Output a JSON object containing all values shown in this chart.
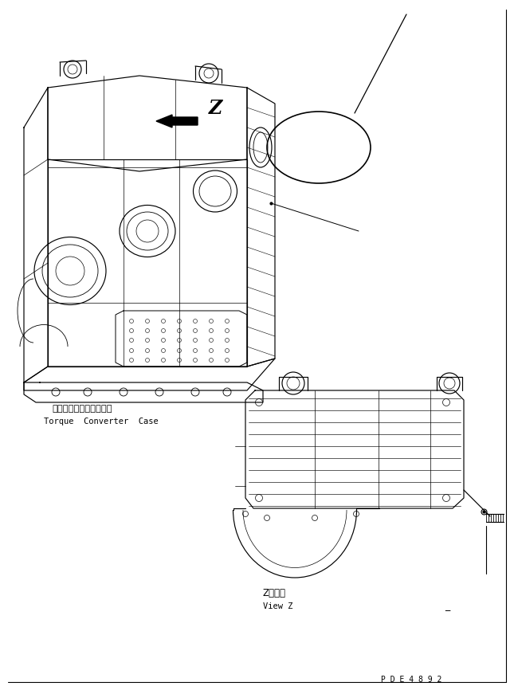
{
  "bg_color": "#ffffff",
  "line_color": "#000000",
  "fig_width": 6.45,
  "fig_height": 8.66,
  "dpi": 100,
  "label_japanese_torque": "トルクコンバータケース",
  "label_english_torque": "Torque  Converter  Case",
  "label_japanese_viewz": "Z　　視",
  "label_english_viewz": "View Z",
  "part_number": "P D E 4 8 9 2",
  "dash_mark": "_"
}
